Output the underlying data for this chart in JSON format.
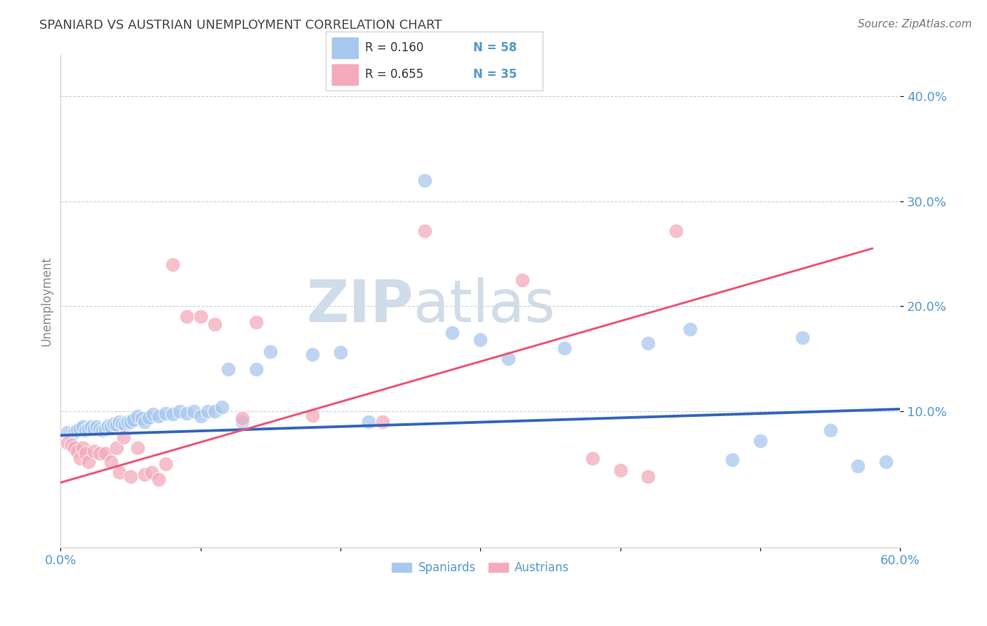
{
  "title": "SPANIARD VS AUSTRIAN UNEMPLOYMENT CORRELATION CHART",
  "source": "Source: ZipAtlas.com",
  "ylabel": "Unemployment",
  "xlim": [
    0.0,
    0.6
  ],
  "ylim": [
    -0.03,
    0.44
  ],
  "yticks": [
    0.1,
    0.2,
    0.3,
    0.4
  ],
  "ytick_labels": [
    "10.0%",
    "20.0%",
    "30.0%",
    "40.0%"
  ],
  "legend_blue_r": "R = 0.160",
  "legend_blue_n": "N = 58",
  "legend_pink_r": "R = 0.655",
  "legend_pink_n": "N = 35",
  "blue_color": "#A8C8EE",
  "pink_color": "#F4AABC",
  "blue_line_color": "#3366BB",
  "pink_line_color": "#EE5577",
  "title_color": "#444444",
  "axis_color": "#5599CC",
  "grid_color": "#BBCCDD",
  "watermark_color": "#D0DCE8",
  "blue_line_x0": 0.0,
  "blue_line_x1": 0.6,
  "blue_line_y0": 0.077,
  "blue_line_y1": 0.102,
  "pink_line_x0": 0.0,
  "pink_line_x1": 0.58,
  "pink_line_y0": 0.032,
  "pink_line_y1": 0.255,
  "blue_scatter_x": [
    0.005,
    0.01,
    0.012,
    0.014,
    0.016,
    0.018,
    0.02,
    0.022,
    0.024,
    0.026,
    0.028,
    0.03,
    0.032,
    0.034,
    0.036,
    0.038,
    0.04,
    0.042,
    0.044,
    0.046,
    0.048,
    0.05,
    0.052,
    0.055,
    0.058,
    0.06,
    0.063,
    0.066,
    0.07,
    0.075,
    0.08,
    0.085,
    0.09,
    0.095,
    0.1,
    0.105,
    0.11,
    0.115,
    0.12,
    0.13,
    0.14,
    0.15,
    0.18,
    0.2,
    0.22,
    0.26,
    0.28,
    0.3,
    0.32,
    0.36,
    0.42,
    0.45,
    0.48,
    0.5,
    0.53,
    0.55,
    0.57,
    0.59
  ],
  "blue_scatter_y": [
    0.08,
    0.08,
    0.082,
    0.083,
    0.085,
    0.082,
    0.083,
    0.085,
    0.083,
    0.085,
    0.083,
    0.082,
    0.083,
    0.086,
    0.085,
    0.088,
    0.087,
    0.09,
    0.088,
    0.087,
    0.09,
    0.09,
    0.092,
    0.095,
    0.093,
    0.09,
    0.094,
    0.097,
    0.095,
    0.098,
    0.097,
    0.1,
    0.098,
    0.1,
    0.095,
    0.1,
    0.1,
    0.104,
    0.14,
    0.09,
    0.14,
    0.157,
    0.154,
    0.156,
    0.09,
    0.32,
    0.175,
    0.168,
    0.15,
    0.16,
    0.165,
    0.178,
    0.054,
    0.072,
    0.17,
    0.082,
    0.048,
    0.052
  ],
  "pink_scatter_x": [
    0.005,
    0.008,
    0.01,
    0.012,
    0.014,
    0.016,
    0.018,
    0.02,
    0.024,
    0.028,
    0.032,
    0.036,
    0.04,
    0.042,
    0.045,
    0.05,
    0.055,
    0.06,
    0.065,
    0.07,
    0.075,
    0.08,
    0.09,
    0.1,
    0.11,
    0.13,
    0.14,
    0.18,
    0.23,
    0.26,
    0.33,
    0.38,
    0.4,
    0.42,
    0.44
  ],
  "pink_scatter_y": [
    0.07,
    0.068,
    0.065,
    0.062,
    0.055,
    0.065,
    0.06,
    0.052,
    0.062,
    0.06,
    0.06,
    0.052,
    0.065,
    0.042,
    0.075,
    0.038,
    0.065,
    0.04,
    0.042,
    0.035,
    0.05,
    0.24,
    0.19,
    0.19,
    0.183,
    0.093,
    0.185,
    0.096,
    0.09,
    0.272,
    0.225,
    0.055,
    0.044,
    0.038,
    0.272
  ]
}
